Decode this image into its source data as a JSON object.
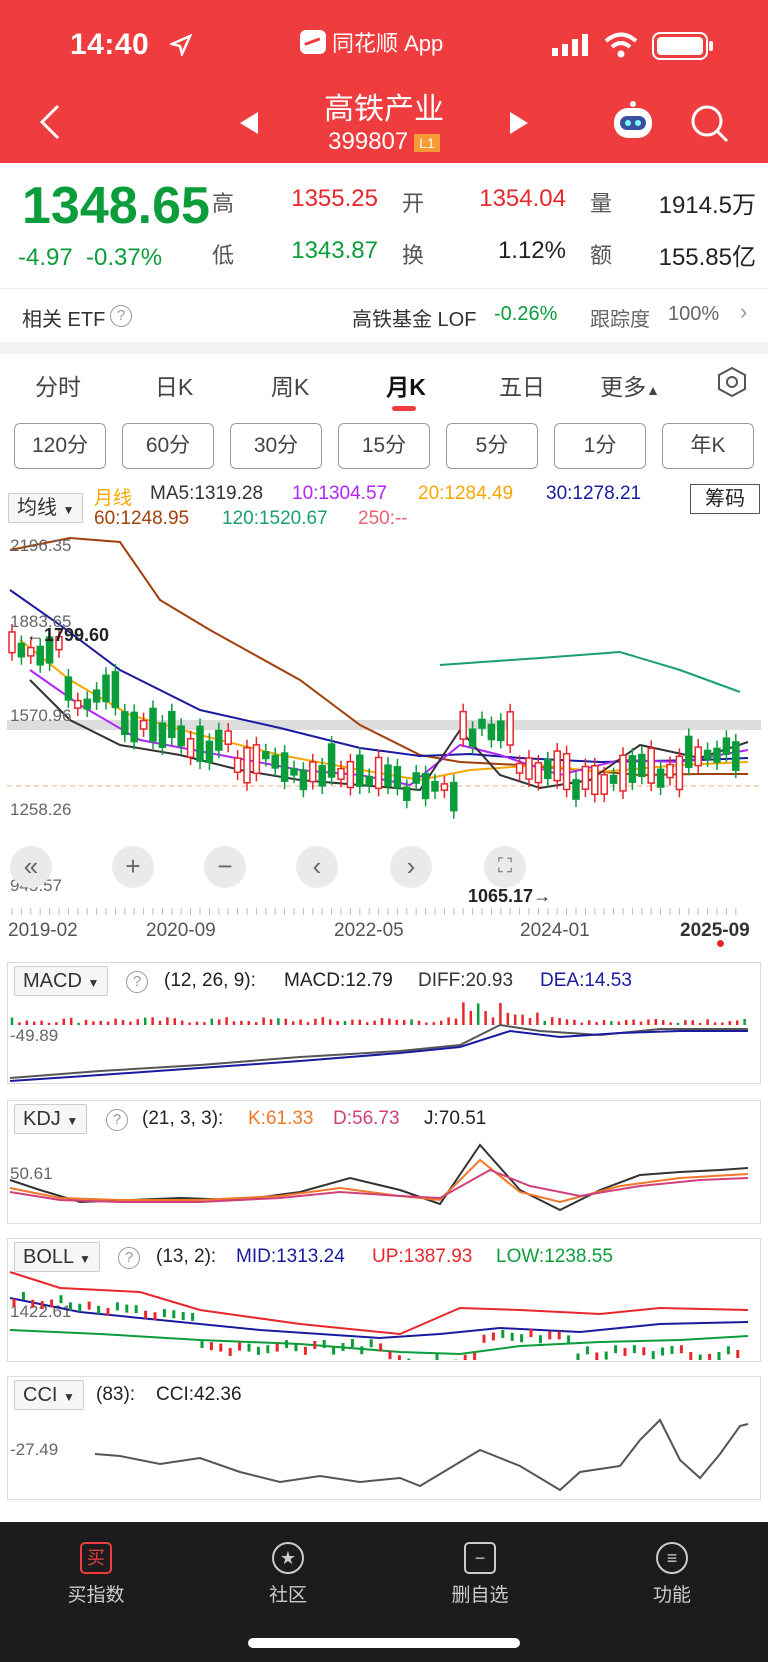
{
  "status": {
    "time": "14:40",
    "app": "同花顺 App"
  },
  "header": {
    "title": "高铁产业",
    "code": "399807",
    "level": "L1"
  },
  "quote": {
    "price": "1348.65",
    "change": "-4.97",
    "change_pct": "-0.37%",
    "high_label": "高",
    "high": "1355.25",
    "low_label": "低",
    "low": "1343.87",
    "open_label": "开",
    "open": "1354.04",
    "turnover_label": "换",
    "turnover": "1.12%",
    "volume_label": "量",
    "volume": "1914.5万",
    "amount_label": "额",
    "amount": "155.85亿"
  },
  "etf": {
    "label": "相关 ETF",
    "name": "高铁基金 LOF",
    "pct": "-0.26%",
    "track_label": "跟踪度",
    "track": "100%"
  },
  "tabs": [
    "分时",
    "日K",
    "周K",
    "月K",
    "五日",
    "更多"
  ],
  "active_tab": "月K",
  "periods": [
    "120分",
    "60分",
    "30分",
    "15分",
    "5分",
    "1分",
    "年K"
  ],
  "ma": {
    "selector": "均线",
    "type": "月线",
    "ma5": "MA5:1319.28",
    "ma10": "10:1304.57",
    "ma20": "20:1284.49",
    "ma30": "30:1278.21",
    "ma60": "60:1248.95",
    "ma120": "120:1520.67",
    "ma250": "250:--",
    "chip_button": "筹码"
  },
  "main_chart": {
    "yticks": [
      "2196.35",
      "1883.65",
      "1570.96",
      "1258.26",
      "945.57"
    ],
    "max_label": "←1799.60",
    "min_label": "1065.17→",
    "xticks": [
      "2019-02",
      "2020-09",
      "2022-05",
      "2024-01",
      "2025-09"
    ]
  },
  "macd": {
    "name": "MACD",
    "params": "(12, 26, 9):",
    "macd": "MACD:12.79",
    "diff": "DIFF:20.93",
    "dea": "DEA:14.53",
    "axis": "-49.89"
  },
  "kdj": {
    "name": "KDJ",
    "params": "(21, 3, 3):",
    "k": "K:61.33",
    "d": "D:56.73",
    "j": "J:70.51",
    "axis": "50.61"
  },
  "boll": {
    "name": "BOLL",
    "params": "(13, 2):",
    "mid": "MID:1313.24",
    "up": "UP:1387.93",
    "low": "LOW:1238.55",
    "axis": "1422.61"
  },
  "cci": {
    "name": "CCI",
    "params": "(83):",
    "value": "CCI:42.36",
    "axis": "-27.49"
  },
  "nav": [
    "买指数",
    "社区",
    "删自选",
    "功能"
  ],
  "nav_icons": [
    "buy-icon",
    "community-icon",
    "remove-watchlist-icon",
    "function-icon"
  ],
  "colors": {
    "header": "#ef3c3e",
    "up": "#e8262b",
    "down": "#0a9d3a",
    "ma5": "#333333",
    "ma10": "#b026ff",
    "ma20": "#f7a800",
    "ma30": "#1a1aa0",
    "ma60": "#a0400a",
    "ma120": "#1aa070",
    "ma250": "#f06070"
  }
}
